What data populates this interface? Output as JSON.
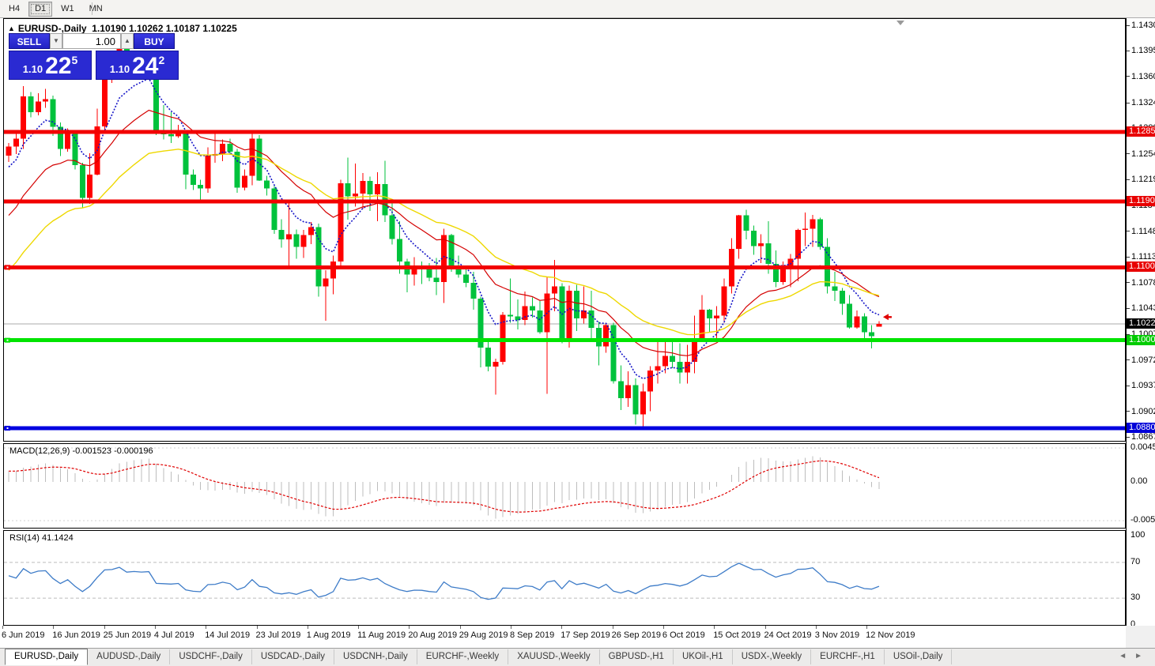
{
  "toolbar": {
    "buttons": [
      {
        "label": "H4",
        "active": false
      },
      {
        "label": "D1",
        "active": true
      },
      {
        "label": "W1",
        "active": false
      },
      {
        "label": "MN",
        "active": false
      }
    ]
  },
  "chart": {
    "title": "EURUSD-,Daily  1.10190 1.10262 1.10187 1.10225",
    "trade": {
      "sell_label": "SELL",
      "buy_label": "BUY",
      "volume": "1.00",
      "sell_small": "1.10",
      "sell_big": "22",
      "sell_sup": "5",
      "buy_small": "1.10",
      "buy_big": "24",
      "buy_sup": "2"
    }
  },
  "chart_data": {
    "type": "candlestick",
    "symbol": "EURUSD-,Daily",
    "ohlc_display": {
      "open": "1.10190",
      "high": "1.10262",
      "low": "1.10187",
      "close": "1.10225"
    },
    "colors": {
      "up": "#FF0000",
      "down": "#00C23C",
      "background": "#FFFFFF"
    },
    "price_axis_ticks": [
      "1.14300",
      "1.13950",
      "1.13600",
      "1.13240",
      "1.12890",
      "1.12540",
      "1.12190",
      "1.11840",
      "1.11480",
      "1.11130",
      "1.10780",
      "1.10430",
      "1.10070",
      "1.09720",
      "1.09370",
      "1.09020",
      "1.08670"
    ],
    "hlines": [
      {
        "price": 1.12851,
        "label": "1.12851",
        "color": "#F20000",
        "label_bg": "#E80000",
        "thickness": 5,
        "handle": false
      },
      {
        "price": 1.11901,
        "label": "1.11901",
        "color": "#F20000",
        "label_bg": "#E80000",
        "thickness": 5,
        "handle": false
      },
      {
        "price": 1.11,
        "label": "1.11000",
        "color": "#F20000",
        "label_bg": "#E80000",
        "thickness": 5,
        "handle": true
      },
      {
        "price": 1.10003,
        "label": "1.10003",
        "color": "#00E400",
        "label_bg": "#00CC00",
        "thickness": 5,
        "handle": true
      },
      {
        "price": 1.088,
        "label": "1.08800",
        "color": "#0000E0",
        "label_bg": "#0000D8",
        "thickness": 5,
        "handle": true
      }
    ],
    "current_price": {
      "value": 1.10225,
      "label": "1.10225",
      "line_color": "#ABABAB",
      "label_bg": "#000000"
    },
    "price_arrow": {
      "price": 1.1032,
      "color": "#E00000"
    },
    "moving_averages": [
      {
        "color": "#1414C8",
        "period": 7,
        "seed": 1.1228,
        "dash": "2 2",
        "width": 1.6
      },
      {
        "color": "#D40000",
        "period": 18,
        "seed": 1.116,
        "dash": "",
        "width": 1.2
      },
      {
        "color": "#EED800",
        "period": 32,
        "seed": 1.1085,
        "dash": "",
        "width": 1.4
      }
    ],
    "candles": [
      [
        1.1253,
        1.127,
        1.1244,
        1.1265
      ],
      [
        1.1265,
        1.1286,
        1.1255,
        1.1276
      ],
      [
        1.1276,
        1.1348,
        1.1262,
        1.1334
      ],
      [
        1.1334,
        1.134,
        1.1305,
        1.1312
      ],
      [
        1.1312,
        1.1338,
        1.1308,
        1.1327
      ],
      [
        1.1327,
        1.1344,
        1.1318,
        1.133
      ],
      [
        1.133,
        1.1335,
        1.128,
        1.1292
      ],
      [
        1.1292,
        1.1298,
        1.1252,
        1.1262
      ],
      [
        1.1262,
        1.129,
        1.1258,
        1.1284
      ],
      [
        1.1284,
        1.1287,
        1.1234,
        1.124
      ],
      [
        1.124,
        1.1243,
        1.1181,
        1.1195
      ],
      [
        1.1195,
        1.1256,
        1.1187,
        1.1227
      ],
      [
        1.1227,
        1.1317,
        1.1226,
        1.1293
      ],
      [
        1.1293,
        1.1378,
        1.1289,
        1.1369
      ],
      [
        1.1369,
        1.1382,
        1.1352,
        1.1374
      ],
      [
        1.1374,
        1.1406,
        1.1365,
        1.14
      ],
      [
        1.14,
        1.1412,
        1.1357,
        1.1366
      ],
      [
        1.1366,
        1.1391,
        1.136,
        1.1373
      ],
      [
        1.1373,
        1.1383,
        1.1361,
        1.1369
      ],
      [
        1.1369,
        1.1394,
        1.1362,
        1.1373
      ],
      [
        1.1373,
        1.1375,
        1.1281,
        1.1285
      ],
      [
        1.1285,
        1.1322,
        1.1275,
        1.1282
      ],
      [
        1.1282,
        1.1312,
        1.127,
        1.1279
      ],
      [
        1.1279,
        1.1295,
        1.1277,
        1.1283
      ],
      [
        1.1283,
        1.1288,
        1.1207,
        1.1227
      ],
      [
        1.1227,
        1.1234,
        1.1206,
        1.1213
      ],
      [
        1.1213,
        1.122,
        1.1193,
        1.1208
      ],
      [
        1.1208,
        1.1264,
        1.1202,
        1.1253
      ],
      [
        1.1253,
        1.1286,
        1.1243,
        1.1255
      ],
      [
        1.1255,
        1.1275,
        1.1245,
        1.1269
      ],
      [
        1.1269,
        1.1276,
        1.1254,
        1.1258
      ],
      [
        1.1258,
        1.1262,
        1.1202,
        1.1209
      ],
      [
        1.1209,
        1.1234,
        1.1205,
        1.1225
      ],
      [
        1.1225,
        1.1283,
        1.1212,
        1.1276
      ],
      [
        1.1276,
        1.1281,
        1.1218,
        1.1219
      ],
      [
        1.1219,
        1.1225,
        1.1198,
        1.1208
      ],
      [
        1.1208,
        1.1211,
        1.1146,
        1.1151
      ],
      [
        1.1151,
        1.1166,
        1.1127,
        1.1138
      ],
      [
        1.1138,
        1.1188,
        1.1101,
        1.1145
      ],
      [
        1.1145,
        1.1152,
        1.1112,
        1.1128
      ],
      [
        1.1128,
        1.1151,
        1.1113,
        1.1144
      ],
      [
        1.1144,
        1.1162,
        1.1132,
        1.1155
      ],
      [
        1.1155,
        1.116,
        1.106,
        1.1074
      ],
      [
        1.1074,
        1.1096,
        1.1027,
        1.1085
      ],
      [
        1.1085,
        1.1116,
        1.1063,
        1.1108
      ],
      [
        1.1108,
        1.122,
        1.1101,
        1.1215
      ],
      [
        1.1215,
        1.125,
        1.1165,
        1.1197
      ],
      [
        1.1197,
        1.1242,
        1.1183,
        1.1201
      ],
      [
        1.1201,
        1.1229,
        1.118,
        1.1218
      ],
      [
        1.1218,
        1.1224,
        1.1177,
        1.12
      ],
      [
        1.12,
        1.123,
        1.1163,
        1.1214
      ],
      [
        1.1214,
        1.1246,
        1.1162,
        1.1171
      ],
      [
        1.1171,
        1.1192,
        1.1131,
        1.1139
      ],
      [
        1.1139,
        1.1163,
        1.1091,
        1.1108
      ],
      [
        1.1108,
        1.1112,
        1.1066,
        1.109
      ],
      [
        1.109,
        1.1114,
        1.1075,
        1.1099
      ],
      [
        1.1099,
        1.1108,
        1.1077,
        1.1097
      ],
      [
        1.1097,
        1.1106,
        1.1081,
        1.1086
      ],
      [
        1.1086,
        1.1113,
        1.1062,
        1.108
      ],
      [
        1.108,
        1.1153,
        1.1051,
        1.1144
      ],
      [
        1.1144,
        1.1146,
        1.1094,
        1.1101
      ],
      [
        1.1101,
        1.1116,
        1.1086,
        1.109
      ],
      [
        1.109,
        1.1098,
        1.1073,
        1.1079
      ],
      [
        1.1079,
        1.1094,
        1.1042,
        1.1057
      ],
      [
        1.1057,
        1.106,
        1.0963,
        1.099
      ],
      [
        1.099,
        1.0998,
        1.0958,
        1.0964
      ],
      [
        1.0964,
        1.0975,
        1.0926,
        1.0971
      ],
      [
        1.0971,
        1.1039,
        1.0967,
        1.1035
      ],
      [
        1.1035,
        1.1085,
        1.1024,
        1.1033
      ],
      [
        1.1033,
        1.1056,
        1.1015,
        1.1028
      ],
      [
        1.1028,
        1.1067,
        1.1021,
        1.1047
      ],
      [
        1.1047,
        1.1059,
        1.1031,
        1.1041
      ],
      [
        1.1041,
        1.1054,
        1.1009,
        1.1011
      ],
      [
        1.1011,
        1.1087,
        1.0927,
        1.1064
      ],
      [
        1.1064,
        1.111,
        1.104,
        1.1074
      ],
      [
        1.1074,
        1.1078,
        1.0996,
        1.1003
      ],
      [
        1.1003,
        1.1075,
        1.099,
        1.1068
      ],
      [
        1.1068,
        1.1076,
        1.1013,
        1.103
      ],
      [
        1.103,
        1.1074,
        1.1023,
        1.1041
      ],
      [
        1.1041,
        1.1068,
        1.1,
        1.1017
      ],
      [
        1.1017,
        1.1026,
        1.0966,
        1.0992
      ],
      [
        1.0992,
        1.1024,
        1.0983,
        1.1021
      ],
      [
        1.1021,
        1.1024,
        1.0941,
        1.0944
      ],
      [
        1.0944,
        1.0966,
        1.0905,
        1.0921
      ],
      [
        1.0921,
        1.0958,
        1.0909,
        1.0939
      ],
      [
        1.0939,
        1.0948,
        1.0885,
        1.0899
      ],
      [
        1.0899,
        1.0941,
        1.0879,
        1.093
      ],
      [
        1.093,
        1.0965,
        1.0903,
        1.0959
      ],
      [
        1.0959,
        1.0999,
        1.0941,
        1.0965
      ],
      [
        1.0965,
        1.0999,
        1.0955,
        1.0979
      ],
      [
        1.0979,
        1.1,
        1.0962,
        1.0971
      ],
      [
        1.0971,
        1.0996,
        1.0941,
        1.0956
      ],
      [
        1.0956,
        1.0994,
        1.0941,
        1.0971
      ],
      [
        1.0971,
        1.1034,
        1.0955,
        1.1003
      ],
      [
        1.1003,
        1.1062,
        1.1002,
        1.1042
      ],
      [
        1.1042,
        1.1043,
        1.1012,
        1.103
      ],
      [
        1.103,
        1.1047,
        1.1001,
        1.1034
      ],
      [
        1.1034,
        1.1085,
        1.1024,
        1.1074
      ],
      [
        1.1074,
        1.114,
        1.1064,
        1.1125
      ],
      [
        1.1125,
        1.1172,
        1.1112,
        1.1171
      ],
      [
        1.1171,
        1.1179,
        1.1138,
        1.115
      ],
      [
        1.115,
        1.1157,
        1.1117,
        1.1129
      ],
      [
        1.1129,
        1.1145,
        1.1106,
        1.1133
      ],
      [
        1.1133,
        1.1163,
        1.1091,
        1.1105
      ],
      [
        1.1105,
        1.1123,
        1.1073,
        1.108
      ],
      [
        1.108,
        1.1108,
        1.1076,
        1.11
      ],
      [
        1.11,
        1.1118,
        1.1073,
        1.1112
      ],
      [
        1.1112,
        1.1153,
        1.1081,
        1.1151
      ],
      [
        1.1151,
        1.1175,
        1.1129,
        1.1153
      ],
      [
        1.1153,
        1.1172,
        1.1128,
        1.1166
      ],
      [
        1.1166,
        1.1168,
        1.1124,
        1.1128
      ],
      [
        1.1128,
        1.114,
        1.1064,
        1.1074
      ],
      [
        1.1074,
        1.1094,
        1.1054,
        1.1068
      ],
      [
        1.1068,
        1.1072,
        1.1035,
        1.105
      ],
      [
        1.105,
        1.1062,
        1.1016,
        1.1018
      ],
      [
        1.1018,
        1.1041,
        1.1016,
        1.1033
      ],
      [
        1.1033,
        1.1037,
        1.1002,
        1.1011
      ],
      [
        1.1011,
        1.1021,
        1.0989,
        1.1006
      ],
      [
        1.1019,
        1.10262,
        1.10187,
        1.10225
      ]
    ],
    "macd": {
      "label": "MACD(12,26,9) -0.001523 -0.000196",
      "fast": 12,
      "slow": 26,
      "signal": 9,
      "axis": [
        "0.004536",
        "0.00",
        "-0.005205"
      ],
      "axis_values": [
        0.004536,
        0.0,
        -0.005205
      ],
      "hist_color": "#BDBDBD",
      "signal_color": "#E00000",
      "current_main": "-0.001523",
      "current_signal": "-0.000196"
    },
    "rsi": {
      "label": "RSI(14) 41.1424",
      "period": 14,
      "current": "41.1424",
      "axis": [
        "100",
        "70",
        "30",
        "0"
      ],
      "axis_values": [
        100,
        70,
        30,
        0
      ],
      "levels": [
        70,
        30
      ],
      "color": "#3E7CC8"
    }
  },
  "xaxis": {
    "labels": [
      "6 Jun 2019",
      "16 Jun 2019",
      "25 Jun 2019",
      "4 Jul 2019",
      "14 Jul 2019",
      "23 Jul 2019",
      "1 Aug 2019",
      "11 Aug 2019",
      "20 Aug 2019",
      "29 Aug 2019",
      "8 Sep 2019",
      "17 Sep 2019",
      "26 Sep 2019",
      "6 Oct 2019",
      "15 Oct 2019",
      "24 Oct 2019",
      "3 Nov 2019",
      "12 Nov 2019"
    ]
  },
  "tabs": {
    "items": [
      "EURUSD-,Daily",
      "AUDUSD-,Daily",
      "USDCHF-,Daily",
      "USDCAD-,Daily",
      "USDCNH-,Daily",
      "EURCHF-,Weekly",
      "XAUUSD-,Weekly",
      "GBPUSD-,H1",
      "UKOil-,H1",
      "USDX-,Weekly",
      "EURCHF-,H1",
      "USOil-,Daily"
    ],
    "active_index": 0,
    "scroll_left": "◄",
    "scroll_right": "►"
  }
}
